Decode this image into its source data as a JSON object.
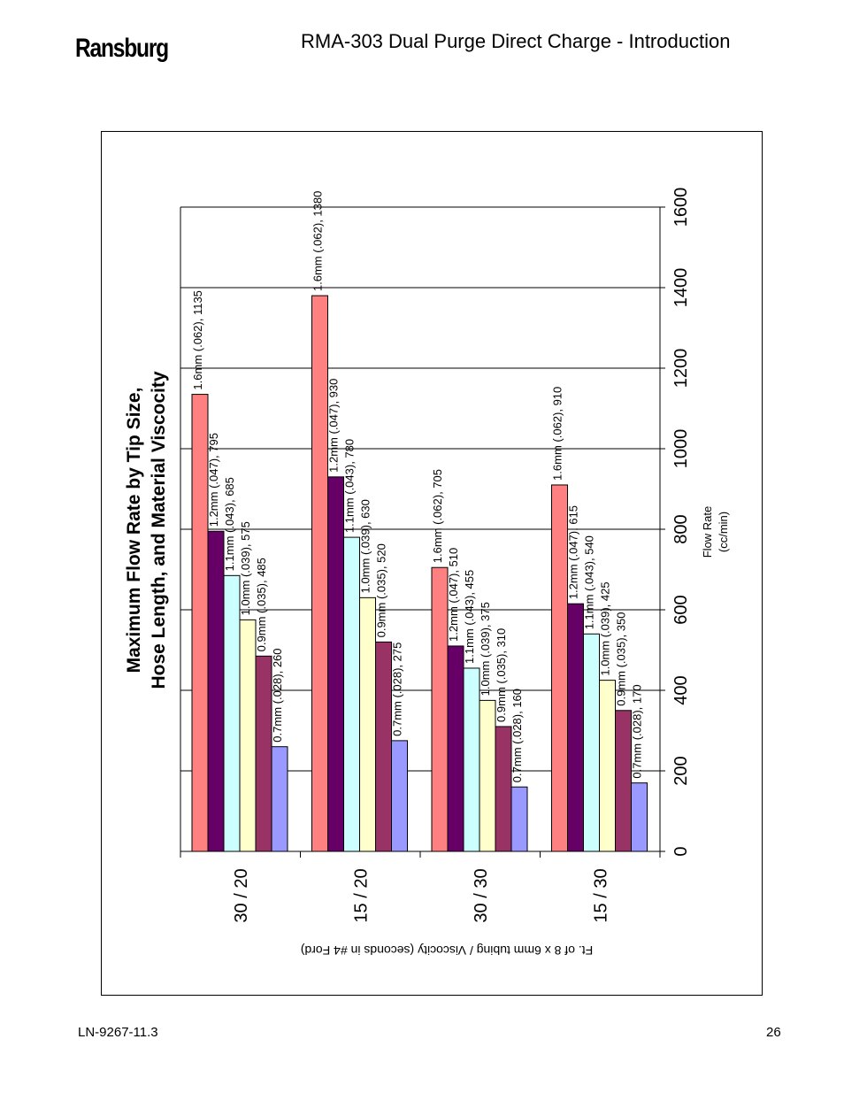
{
  "header": {
    "brand": "Ransburg",
    "title": "RMA-303 Dual Purge Direct Charge - Introduction"
  },
  "footer": {
    "doc_id": "LN-9267-11.3",
    "page": "26"
  },
  "colors": {
    "series": [
      "#ff8080",
      "#660066",
      "#ccffff",
      "#ffffcc",
      "#993366",
      "#9999ff"
    ],
    "axis": "#000000",
    "grid": "#000000"
  },
  "chart_data": {
    "type": "bar",
    "orientation": "horizontal",
    "title_lines": [
      "Maximum Flow Rate by Tip Size,",
      "Hose Length, and Material Viscocity"
    ],
    "xlabel": "Ft. of 8 x 6mm tubing / Viscocity (seconds in #4 Ford)",
    "ylabel_lines": [
      "Flow Rate",
      "(cc/min)"
    ],
    "categories": [
      "30 / 20",
      "15 / 20",
      "30 / 30",
      "15 / 30"
    ],
    "ylim": [
      0,
      1600
    ],
    "yticks": [
      "0",
      "200",
      "400",
      "600",
      "800",
      "1000",
      "1200",
      "1400",
      "1600"
    ],
    "grid": true,
    "legend": "none",
    "series": [
      {
        "values": [
          1135,
          1380,
          705,
          910
        ],
        "labels": [
          "1.6mm (.062), 1135",
          "1.6mm (.062), 1380",
          "1.6mm (.062), 705",
          "1.6mm (.062), 910"
        ]
      },
      {
        "values": [
          795,
          930,
          510,
          615
        ],
        "labels": [
          "1.2mm (.047), 795",
          "1.2mm (.047), 930",
          "1.2mm (.047), 510",
          "1.2mm (.047), 615"
        ]
      },
      {
        "values": [
          685,
          780,
          455,
          540
        ],
        "labels": [
          "1.1mm (.043), 685",
          "1.1mm (.043), 780",
          "1.1mm (.043), 455",
          "1.1mm (.043), 540"
        ]
      },
      {
        "values": [
          575,
          630,
          375,
          425
        ],
        "labels": [
          "1.0mm (.039), 575",
          "1.0mm (.039), 630",
          "1.0mm (.039), 375",
          "1.0mm (.039), 425"
        ]
      },
      {
        "values": [
          485,
          520,
          310,
          350
        ],
        "labels": [
          "0.9mm (.035), 485",
          "0.9mm (.035), 520",
          "0.9mm (.035), 310",
          "0.9mm (.035), 350"
        ]
      },
      {
        "values": [
          260,
          275,
          160,
          170
        ],
        "labels": [
          "0.7mm (.028), 260",
          "0.7mm (.028), 275",
          "0.7mm (.028), 160",
          "0.7mm (.028), 170"
        ]
      }
    ]
  }
}
